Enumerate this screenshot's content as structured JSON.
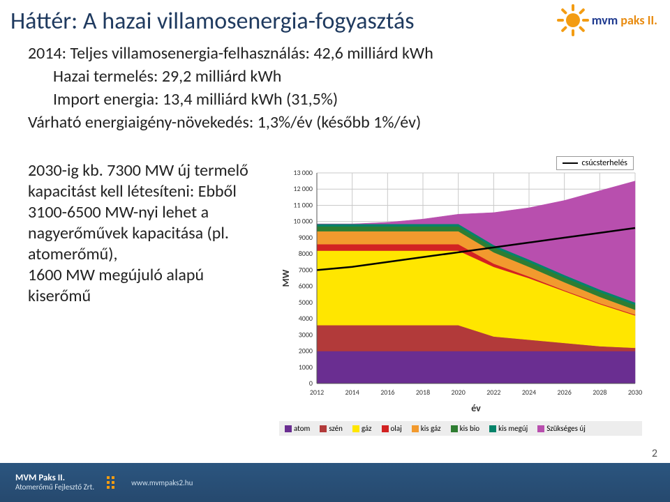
{
  "title": "Háttér: A hazai villamosenergia-fogyasztás",
  "logo": {
    "text_blue": "mvm",
    "text_orange": " paks II."
  },
  "bullets": [
    "2014: Teljes villamosenergia-felhasználás: 42,6 milliárd kWh",
    "Hazai termelés: 29,2 milliárd kWh",
    "Import energia: 13,4 milliárd kWh (31,5%)",
    "Várható energiaigény-növekedés: 1,3%/év (később 1%/év)"
  ],
  "left_block": "2030-ig kb. 7300 MW új termelő kapacitást kell létesíteni: Ebből 3100-6500 MW-nyi lehet a nagyerőművek kapacitása (pl. atomerőmű),\n1600 MW megújuló alapú kiserőmű",
  "chart": {
    "type": "stacked-area",
    "x_label": "év",
    "y_label": "MW",
    "x_ticks": [
      2012,
      2014,
      2016,
      2018,
      2020,
      2022,
      2024,
      2026,
      2028,
      2030
    ],
    "y_ticks": [
      0,
      1000,
      2000,
      3000,
      4000,
      5000,
      6000,
      7000,
      8000,
      9000,
      10000,
      11000,
      12000,
      13000
    ],
    "ylim": [
      0,
      13000
    ],
    "grid_color": "#c9c9c9",
    "background_color": "#ffffff",
    "axis_fontsize": 10,
    "label_fontsize": 14,
    "series_order": [
      "atom",
      "szen",
      "gaz",
      "olaj",
      "kisgaz",
      "kisbio",
      "kismeguj",
      "szukseges"
    ],
    "series": {
      "atom": {
        "label": "atom",
        "color": "#6a2e91",
        "values": [
          2000,
          2000,
          2000,
          2000,
          2000,
          2000,
          2000,
          2000,
          2000,
          2000
        ]
      },
      "szen": {
        "label": "szén",
        "color": "#b23a3a",
        "values": [
          1600,
          1600,
          1600,
          1600,
          1600,
          900,
          700,
          500,
          300,
          200
        ]
      },
      "gaz": {
        "label": "gáz",
        "color": "#ffe600",
        "values": [
          4600,
          4600,
          4600,
          4600,
          4600,
          4300,
          3800,
          3200,
          2600,
          2000
        ]
      },
      "olaj": {
        "label": "olaj",
        "color": "#d22222",
        "values": [
          400,
          400,
          400,
          400,
          400,
          200,
          100,
          50,
          50,
          50
        ]
      },
      "kisgaz": {
        "label": "kis gáz",
        "color": "#f29a2e",
        "values": [
          800,
          800,
          800,
          800,
          800,
          700,
          600,
          500,
          400,
          300
        ]
      },
      "kisbio": {
        "label": "kis bio",
        "color": "#2f7d32",
        "values": [
          300,
          300,
          300,
          300,
          300,
          300,
          300,
          300,
          300,
          300
        ]
      },
      "kismeguj": {
        "label": "kis megúj",
        "color": "#04836a",
        "values": [
          150,
          150,
          150,
          150,
          150,
          150,
          150,
          150,
          150,
          150
        ]
      },
      "szukseges": {
        "label": "Szükséges új",
        "color": "#b84fae",
        "values": [
          0,
          0,
          100,
          300,
          600,
          2000,
          3200,
          4600,
          6100,
          7500
        ]
      }
    },
    "peak_line": {
      "label": "csúcsterhelés",
      "color": "#000000",
      "values": [
        7000,
        7200,
        7500,
        7800,
        8100,
        8400,
        8700,
        9000,
        9300,
        9600
      ]
    }
  },
  "legend_title": "csúcsterhelés",
  "footer": {
    "line1": "MVM Paks II.",
    "line2": "Atomerőmű Fejlesztő Zrt.",
    "url": "www.mvmpaks2.hu"
  },
  "page_number": "2"
}
